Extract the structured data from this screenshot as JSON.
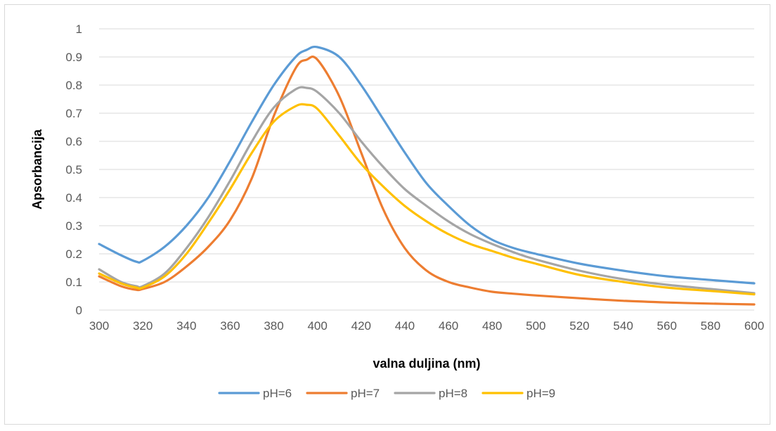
{
  "chart_data": {
    "type": "line",
    "title": "",
    "xlabel": "valna duljina (nm)",
    "ylabel": "Apsorbancija",
    "xlim": [
      300,
      600
    ],
    "ylim": [
      0,
      1
    ],
    "x_ticks": [
      "300",
      "320",
      "340",
      "360",
      "380",
      "400",
      "420",
      "440",
      "460",
      "480",
      "500",
      "520",
      "540",
      "560",
      "580",
      "600"
    ],
    "y_ticks": [
      "0",
      "0.1",
      "0.2",
      "0.3",
      "0.4",
      "0.5",
      "0.6",
      "0.7",
      "0.8",
      "0.9",
      "1"
    ],
    "grid": "horizontal",
    "legend_position": "bottom",
    "x": [
      300,
      310,
      317,
      320,
      330,
      340,
      350,
      360,
      370,
      380,
      390,
      395,
      400,
      410,
      420,
      430,
      440,
      450,
      460,
      470,
      480,
      490,
      500,
      520,
      540,
      560,
      580,
      600
    ],
    "series": [
      {
        "name": "pH=6",
        "color": "#5b9bd5",
        "values": [
          0.235,
          0.195,
          0.172,
          0.175,
          0.225,
          0.3,
          0.4,
          0.53,
          0.67,
          0.8,
          0.9,
          0.925,
          0.935,
          0.9,
          0.8,
          0.68,
          0.56,
          0.45,
          0.37,
          0.3,
          0.25,
          0.22,
          0.2,
          0.165,
          0.14,
          0.12,
          0.107,
          0.095
        ]
      },
      {
        "name": "pH=7",
        "color": "#ed7d31",
        "values": [
          0.12,
          0.085,
          0.072,
          0.075,
          0.1,
          0.155,
          0.225,
          0.32,
          0.47,
          0.69,
          0.86,
          0.89,
          0.89,
          0.76,
          0.56,
          0.36,
          0.22,
          0.14,
          0.1,
          0.08,
          0.065,
          0.058,
          0.052,
          0.042,
          0.033,
          0.027,
          0.023,
          0.02
        ]
      },
      {
        "name": "pH=8",
        "color": "#a5a5a5",
        "values": [
          0.145,
          0.1,
          0.085,
          0.085,
          0.13,
          0.22,
          0.33,
          0.46,
          0.6,
          0.72,
          0.785,
          0.79,
          0.775,
          0.7,
          0.6,
          0.51,
          0.43,
          0.37,
          0.315,
          0.27,
          0.235,
          0.205,
          0.18,
          0.14,
          0.11,
          0.09,
          0.075,
          0.06
        ]
      },
      {
        "name": "pH=9",
        "color": "#ffc000",
        "values": [
          0.13,
          0.095,
          0.08,
          0.08,
          0.12,
          0.2,
          0.31,
          0.43,
          0.56,
          0.67,
          0.725,
          0.73,
          0.715,
          0.62,
          0.52,
          0.44,
          0.37,
          0.315,
          0.27,
          0.235,
          0.21,
          0.185,
          0.165,
          0.125,
          0.1,
          0.08,
          0.068,
          0.056
        ]
      }
    ]
  }
}
